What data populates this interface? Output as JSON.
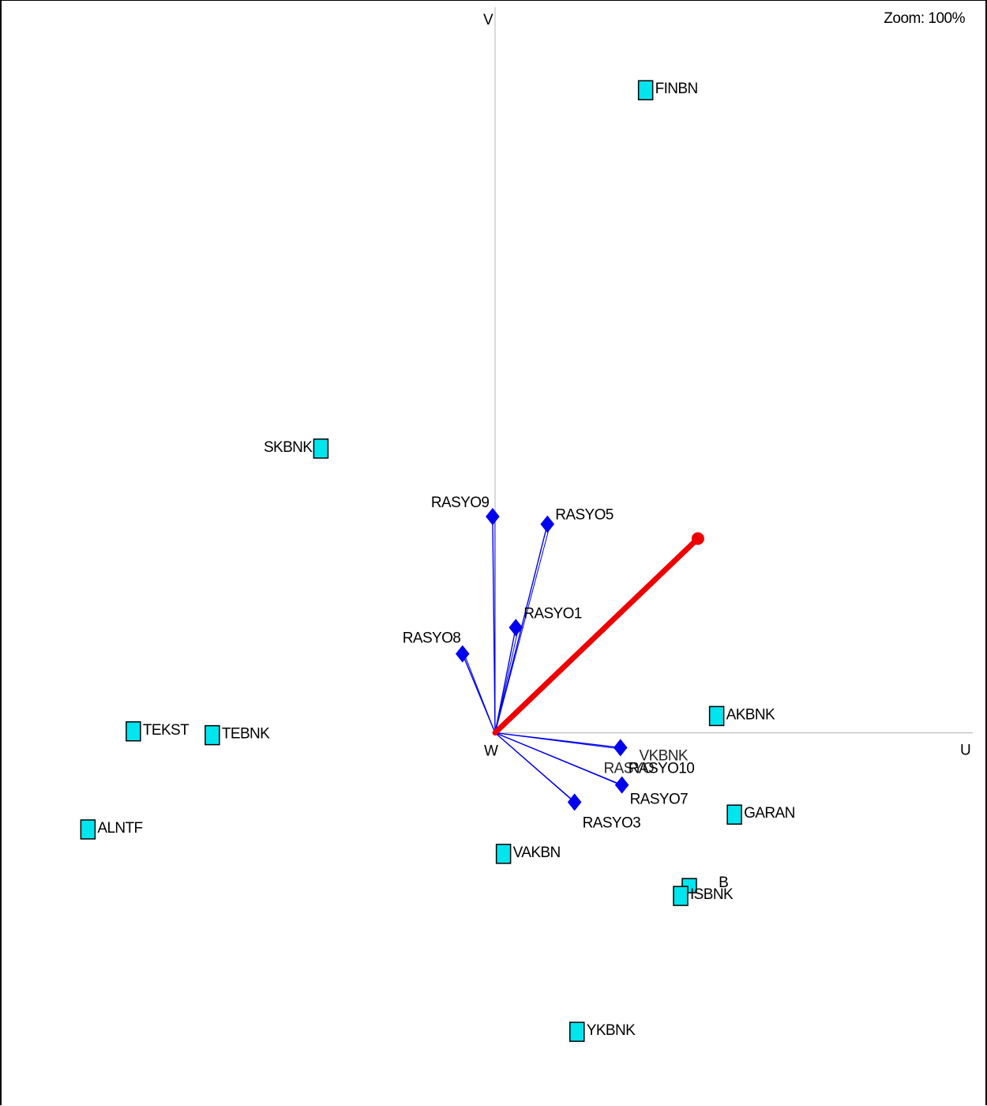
{
  "toolbar": {
    "zoom_label": "Zoom: 100%"
  },
  "colors": {
    "axis": "#c0c0c0",
    "variable": "#0000ee",
    "object_fill": "#00e5ee",
    "object_stroke": "#000000",
    "highlight_vector": "#ee0000"
  },
  "chart_data": {
    "type": "scatter",
    "title": "",
    "axes": {
      "x_label": "U",
      "y_label": "V",
      "origin_label": "W"
    },
    "xlim": [
      -100,
      100
    ],
    "ylim": [
      -78,
      153
    ],
    "objects": [
      {
        "name": "FINBN",
        "x": 30.5,
        "y": 134.8
      },
      {
        "name": "SKBNK",
        "x": -35.3,
        "y": 59.9
      },
      {
        "name": "TEKST",
        "x": -73.3,
        "y": 0.8
      },
      {
        "name": "TEBNK",
        "x": -57.3,
        "y": 0.0
      },
      {
        "name": "ALNTF",
        "x": -82.5,
        "y": -19.7
      },
      {
        "name": "AKBNK",
        "x": 44.9,
        "y": 4.0
      },
      {
        "name": "GARAN",
        "x": 48.5,
        "y": -16.6
      },
      {
        "name": "VAKBN",
        "x": 1.7,
        "y": -24.8
      },
      {
        "name": "ISBNK",
        "x": 37.6,
        "y": -33.6
      },
      {
        "name": "YKBNK",
        "x": 16.6,
        "y": -62.0
      }
    ],
    "variables": [
      {
        "name": "RASYO9",
        "x": -0.5,
        "y": 45.2
      },
      {
        "name": "RASYO5",
        "x": 10.6,
        "y": 43.6
      },
      {
        "name": "RASYO1",
        "x": 4.2,
        "y": 22.0
      },
      {
        "name": "RASYO8",
        "x": -6.6,
        "y": 16.5
      },
      {
        "name": "RASYO10",
        "x": 25.4,
        "y": -3.1
      },
      {
        "name": "RASYO7",
        "x": 25.7,
        "y": -10.9
      },
      {
        "name": "RASYO3",
        "x": 16.1,
        "y": -14.5
      }
    ],
    "partial_labels": [
      "RASYO",
      "VKBNK",
      "B"
    ],
    "highlight_vector": {
      "x": 41.1,
      "y": 40.6
    }
  }
}
